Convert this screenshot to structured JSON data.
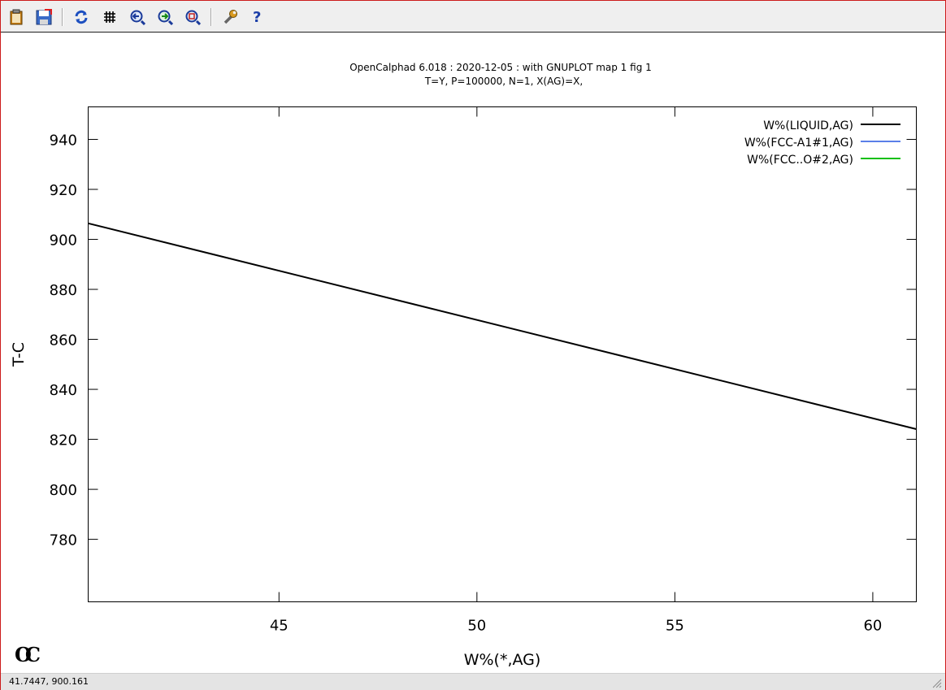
{
  "toolbar": {
    "buttons": [
      {
        "name": "copy-to-clipboard-icon"
      },
      {
        "name": "export-plot-icon"
      },
      {
        "name": "replot-icon"
      },
      {
        "name": "toggle-grid-icon"
      },
      {
        "name": "previous-zoom-icon"
      },
      {
        "name": "next-zoom-icon"
      },
      {
        "name": "autoscale-icon"
      },
      {
        "name": "settings-icon"
      },
      {
        "name": "help-icon"
      }
    ]
  },
  "plot": {
    "title_line1": "OpenCalphad   6.018 :  2020-12-05 : with GNUPLOT map 1 fig 1",
    "title_line2": "T=Y,  P=100000, N=1, X(AG)=X,"
  },
  "logo": {
    "text": "OC"
  },
  "status": {
    "coordinates": "41.7447,  900.161"
  },
  "chart_data": {
    "type": "line",
    "title": "OpenCalphad   6.018 :  2020-12-05 : with GNUPLOT map 1 fig 1",
    "subtitle": "T=Y,  P=100000, N=1, X(AG)=X,",
    "xlabel": "W%(*,AG)",
    "ylabel": "T-C",
    "xlim": [
      40.18,
      61.1
    ],
    "ylim": [
      755,
      953
    ],
    "x_ticks": [
      45,
      50,
      55,
      60
    ],
    "y_ticks": [
      780,
      800,
      820,
      840,
      860,
      880,
      900,
      920,
      940
    ],
    "grid": false,
    "legend_position": "top-right",
    "series": [
      {
        "name": "W%(LIQUID,AG)",
        "color": "#000000",
        "points": [
          [
            40.18,
            906.4
          ],
          [
            61.1,
            824.1
          ]
        ]
      },
      {
        "name": "W%(FCC-A1#1,AG)",
        "color": "#5b7fe8",
        "points": []
      },
      {
        "name": "W%(FCC..O#2,AG)",
        "color": "#12c012",
        "points": []
      }
    ]
  }
}
